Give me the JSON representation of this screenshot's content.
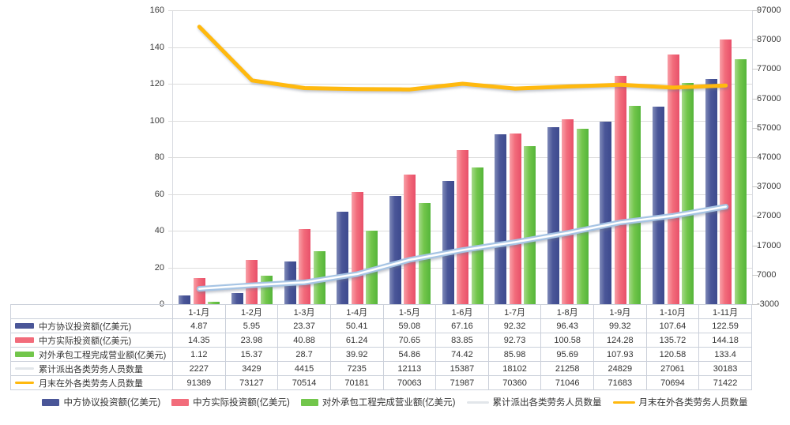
{
  "chart_data": {
    "type": "bar+line",
    "title": "",
    "categories": [
      "1-1月",
      "1-2月",
      "1-3月",
      "1-4月",
      "1-5月",
      "1-6月",
      "1-7月",
      "1-8月",
      "1-9月",
      "1-10月",
      "1-11月"
    ],
    "bar_series": [
      {
        "name": "中方协议投资额(亿美元)",
        "axis": "left",
        "color": "#4a5698",
        "color_light": "#7f8ab8",
        "color_dark": "#3d4a8e",
        "values": [
          4.87,
          5.95,
          23.37,
          50.41,
          59.08,
          67.16,
          92.32,
          96.43,
          99.32,
          107.64,
          122.59
        ]
      },
      {
        "name": "中方实际投资额(亿美元)",
        "axis": "left",
        "color": "#f26c7b",
        "color_light": "#f8a0a8",
        "color_dark": "#e8506a",
        "values": [
          14.35,
          23.98,
          40.88,
          61.24,
          70.65,
          83.85,
          92.73,
          100.58,
          124.28,
          135.72,
          144.18
        ]
      },
      {
        "name": "对外承包工程完成营业额(亿美元)",
        "axis": "left",
        "color": "#72c64b",
        "color_light": "#a5d98a",
        "color_dark": "#55b53a",
        "values": [
          1.12,
          15.37,
          28.7,
          39.92,
          54.86,
          74.42,
          85.98,
          95.69,
          107.93,
          120.58,
          133.4
        ]
      }
    ],
    "line_series": [
      {
        "name": "累计派出各类劳务人员数量",
        "axis": "right",
        "color_outer": "#a6c4e4",
        "color_inner": "#ffffff",
        "legend_color": "#e2e6ea",
        "values": [
          2227,
          3429,
          4415,
          7235,
          12113,
          15387,
          18102,
          21258,
          24829,
          27061,
          30183
        ]
      },
      {
        "name": "月末在外各类劳务人员数量",
        "axis": "right",
        "color": "#ffb90f",
        "legend_color": "#ffb90f",
        "values": [
          91389,
          73127,
          70514,
          70181,
          70063,
          71987,
          70360,
          71046,
          71683,
          70694,
          71422
        ]
      }
    ],
    "left_axis": {
      "min": 0,
      "max": 160,
      "step": 20,
      "ticks": [
        0,
        20,
        40,
        60,
        80,
        100,
        120,
        140,
        160
      ]
    },
    "right_axis": {
      "min": -3000,
      "max": 97000,
      "step": 10000,
      "ticks": [
        -3000,
        7000,
        17000,
        27000,
        37000,
        47000,
        57000,
        67000,
        77000,
        87000,
        97000
      ]
    },
    "grid": true,
    "legend_position": "bottom"
  }
}
